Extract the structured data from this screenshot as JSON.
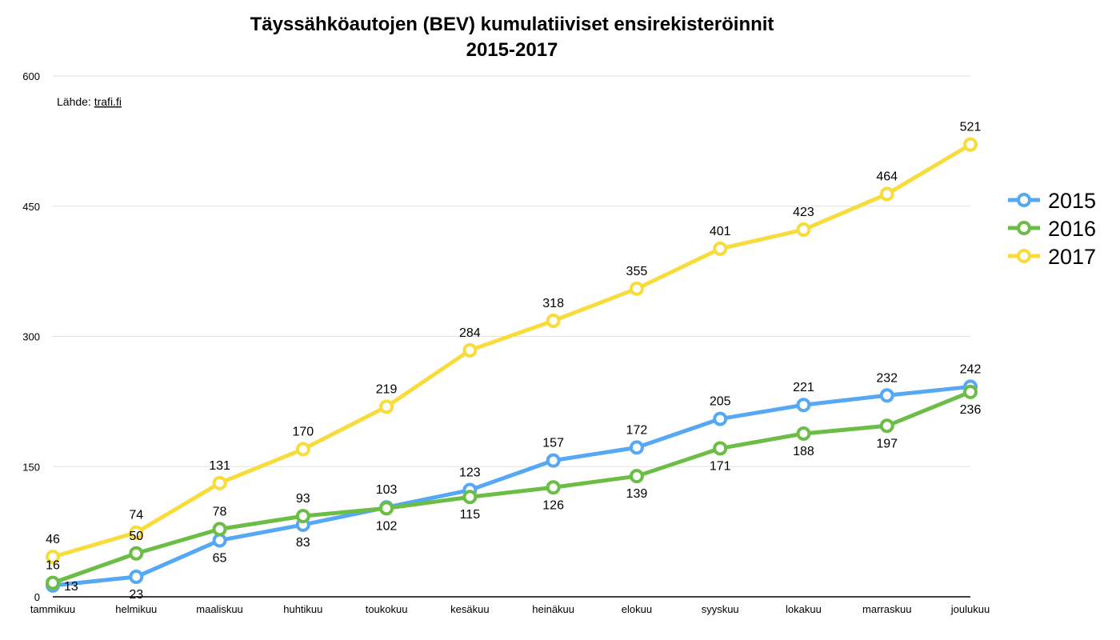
{
  "chart_data": {
    "type": "line",
    "title": [
      "Täyssähköautojen (BEV) kumulatiiviset ensirekisteröinnit",
      "2015-2017"
    ],
    "source_label": "Lähde:",
    "source_link": "trafi.fi",
    "categories": [
      "tammikuu",
      "helmikuu",
      "maaliskuu",
      "huhtikuu",
      "toukokuu",
      "kesäkuu",
      "heinäkuu",
      "elokuu",
      "syyskuu",
      "lokakuu",
      "marraskuu",
      "joulukuu"
    ],
    "ylim": [
      0,
      600
    ],
    "yticks": [
      0,
      150,
      300,
      450,
      600
    ],
    "grid": true,
    "legend": "right",
    "series": [
      {
        "name": "2015",
        "color": "#56a8f5",
        "values": [
          13,
          23,
          65,
          83,
          103,
          123,
          157,
          172,
          205,
          221,
          232,
          242
        ]
      },
      {
        "name": "2016",
        "color": "#6cbd45",
        "values": [
          16,
          50,
          78,
          93,
          102,
          115,
          126,
          139,
          171,
          188,
          197,
          236
        ]
      },
      {
        "name": "2017",
        "color": "#f7dc3b",
        "values": [
          46,
          74,
          131,
          170,
          219,
          284,
          318,
          355,
          401,
          423,
          464,
          521
        ]
      }
    ]
  }
}
